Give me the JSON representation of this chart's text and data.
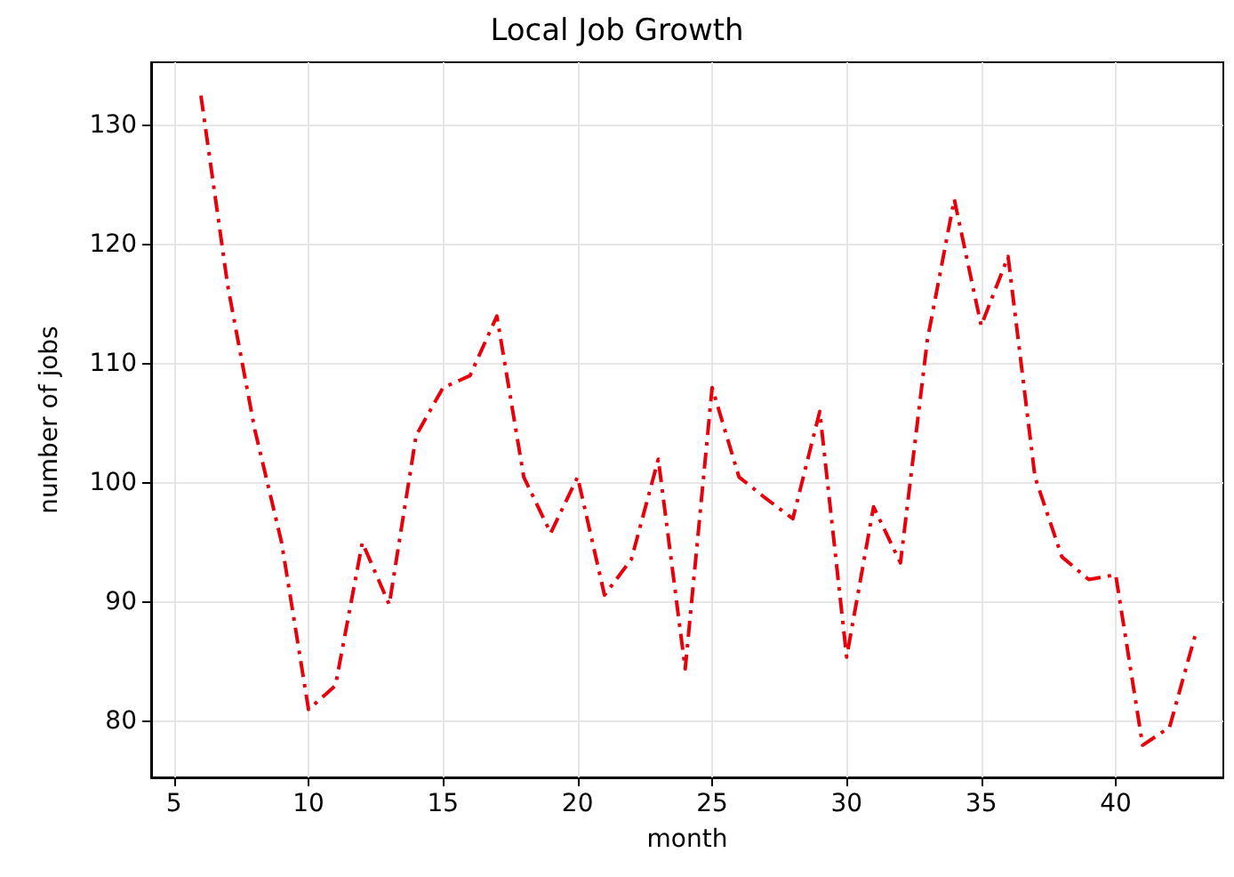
{
  "chart_data": {
    "type": "line",
    "title": "Local Job Growth",
    "xlabel": "month",
    "ylabel": "number of jobs",
    "x": [
      6,
      7,
      8,
      9,
      10,
      11,
      12,
      13,
      14,
      15,
      16,
      17,
      18,
      19,
      20,
      21,
      22,
      23,
      24,
      25,
      26,
      27,
      28,
      29,
      30,
      31,
      32,
      33,
      34,
      35,
      36,
      37,
      38,
      39,
      40,
      41,
      42,
      43
    ],
    "series": [
      {
        "color": "#e8000b",
        "values": [
          132.5,
          116.5,
          104.5,
          95,
          81,
          83,
          95,
          89.8,
          104,
          108,
          109,
          114,
          100.5,
          95.8,
          100.5,
          90.6,
          93.6,
          102,
          84.4,
          108,
          100.5,
          98.7,
          97,
          106,
          85.4,
          98,
          93.3,
          112,
          123.8,
          113.2,
          119,
          100.5,
          93.8,
          91.9,
          92.3,
          78,
          79.5,
          87.6
        ]
      }
    ],
    "xlim": [
      4.15,
      44.0
    ],
    "ylim": [
      75.3,
      135.3
    ],
    "xticks": [
      5,
      10,
      15,
      20,
      25,
      30,
      35,
      40
    ],
    "yticks": [
      80,
      90,
      100,
      110,
      120,
      130
    ],
    "grid": true,
    "marker": "none",
    "line_style": "dashdot"
  }
}
